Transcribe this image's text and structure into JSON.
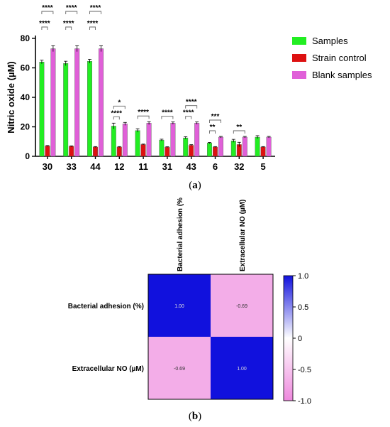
{
  "captions": {
    "a": "a",
    "b": "b"
  },
  "chart_data": [
    {
      "type": "bar",
      "ylabel": "Nitric oxide (µM)",
      "xlabel": "",
      "ylim": [
        0,
        80
      ],
      "yticks": [
        0,
        20,
        40,
        60,
        80
      ],
      "categories": [
        "30",
        "33",
        "44",
        "12",
        "11",
        "31",
        "43",
        "6",
        "32",
        "5"
      ],
      "legend_position": "right",
      "series": [
        {
          "name": "Samples",
          "color": "#22ee22",
          "values": [
            64,
            63,
            64.5,
            20.5,
            17.5,
            11,
            12.5,
            9,
            10.5,
            13
          ],
          "errors": [
            1.2,
            1.5,
            1.3,
            2,
            1.2,
            0.6,
            0.8,
            0.4,
            1,
            1
          ]
        },
        {
          "name": "Strain control",
          "color": "#dd1111",
          "values": [
            7,
            6.8,
            6.3,
            6.3,
            8,
            6.2,
            7.5,
            6.3,
            8,
            6.3
          ],
          "errors": [
            0.3,
            0.3,
            0.3,
            0.3,
            0.3,
            0.3,
            0.4,
            0.3,
            1.5,
            0.3
          ]
        },
        {
          "name": "Blank samples",
          "color": "#e060d8",
          "values": [
            73,
            73,
            73,
            22,
            22.5,
            22.5,
            22.5,
            13,
            13,
            13
          ],
          "errors": [
            2,
            2,
            2,
            1,
            1,
            0.8,
            0.8,
            0.5,
            0.5,
            0.5
          ]
        }
      ],
      "significance": [
        {
          "category": "30",
          "pair": [
            0,
            1
          ],
          "label": "****",
          "level": 1
        },
        {
          "category": "30",
          "pair": [
            0,
            2
          ],
          "label": "****",
          "level": 2
        },
        {
          "category": "33",
          "pair": [
            0,
            1
          ],
          "label": "****",
          "level": 1
        },
        {
          "category": "33",
          "pair": [
            0,
            2
          ],
          "label": "****",
          "level": 2
        },
        {
          "category": "44",
          "pair": [
            0,
            1
          ],
          "label": "****",
          "level": 1
        },
        {
          "category": "44",
          "pair": [
            0,
            2
          ],
          "label": "****",
          "level": 2
        },
        {
          "category": "12",
          "pair": [
            0,
            1
          ],
          "label": "****",
          "level": 1
        },
        {
          "category": "12",
          "pair": [
            0,
            2
          ],
          "label": "*",
          "level": 2
        },
        {
          "category": "11",
          "pair": [
            0,
            2
          ],
          "label": "****",
          "level": 1
        },
        {
          "category": "31",
          "pair": [
            0,
            2
          ],
          "label": "****",
          "level": 1
        },
        {
          "category": "43",
          "pair": [
            0,
            1
          ],
          "label": "****",
          "level": 1
        },
        {
          "category": "43",
          "pair": [
            0,
            2
          ],
          "label": "****",
          "level": 2
        },
        {
          "category": "6",
          "pair": [
            0,
            1
          ],
          "label": "**",
          "level": 1
        },
        {
          "category": "6",
          "pair": [
            0,
            2
          ],
          "label": "***",
          "level": 2
        },
        {
          "category": "32",
          "pair": [
            0,
            2
          ],
          "label": "**",
          "level": 1
        }
      ]
    },
    {
      "type": "heatmap",
      "rows": [
        "Bacterial adhesion (%)",
        "Extracellular NO (µM)"
      ],
      "columns": [
        "Bacterial adhesion (%)",
        "Extracellular NO (µM)"
      ],
      "values": [
        [
          1.0,
          -0.69
        ],
        [
          -0.69,
          1.0
        ]
      ],
      "value_labels": [
        [
          "1.00",
          "-0.69"
        ],
        [
          "-0.69",
          "1.00"
        ]
      ],
      "colorbar": {
        "min": -1.0,
        "max": 1.0,
        "ticks": [
          1.0,
          0.5,
          0,
          -0.5,
          -1.0
        ],
        "tick_labels": [
          "1.0",
          "0.5",
          "0",
          "-0.5",
          "-1.0"
        ],
        "low_color": "#ee88dd",
        "mid_color": "#ffffff",
        "high_color": "#1111dd"
      }
    }
  ]
}
